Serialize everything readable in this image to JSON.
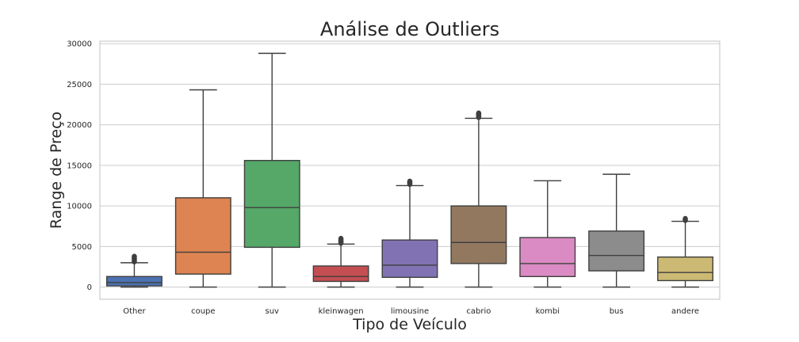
{
  "chart_data": {
    "type": "box",
    "title": "Análise de Outliers",
    "xlabel": "Tipo de Veículo",
    "ylabel": "Range de Preço",
    "ylim": [
      -1500,
      30300
    ],
    "yticks": [
      0,
      5000,
      10000,
      15000,
      20000,
      25000,
      30000
    ],
    "grid": true,
    "categories": [
      "Other",
      "coupe",
      "suv",
      "kleinwagen",
      "limousine",
      "cabrio",
      "kombi",
      "bus",
      "andere"
    ],
    "boxes": [
      {
        "category": "Other",
        "color": "#4c72b0",
        "whisker_low": 0,
        "q1": 150,
        "median": 550,
        "q3": 1300,
        "whisker_high": 3000,
        "fliers": [
          3150,
          3350,
          3550,
          3750
        ]
      },
      {
        "category": "coupe",
        "color": "#dd8452",
        "whisker_low": 0,
        "q1": 1600,
        "median": 4300,
        "q3": 11000,
        "whisker_high": 24300,
        "fliers": []
      },
      {
        "category": "suv",
        "color": "#55a868",
        "whisker_low": 0,
        "q1": 4900,
        "median": 9800,
        "q3": 15600,
        "whisker_high": 28800,
        "fliers": []
      },
      {
        "category": "kleinwagen",
        "color": "#c44e52",
        "whisker_low": 0,
        "q1": 700,
        "median": 1300,
        "q3": 2600,
        "whisker_high": 5300,
        "fliers": [
          5450,
          5600,
          5800,
          5950
        ]
      },
      {
        "category": "limousine",
        "color": "#8172b3",
        "whisker_low": 0,
        "q1": 1200,
        "median": 2700,
        "q3": 5800,
        "whisker_high": 12500,
        "fliers": [
          12700,
          12850,
          13000
        ]
      },
      {
        "category": "cabrio",
        "color": "#937860",
        "whisker_low": 0,
        "q1": 2900,
        "median": 5500,
        "q3": 10000,
        "whisker_high": 20800,
        "fliers": [
          20950,
          21100,
          21250,
          21400
        ]
      },
      {
        "category": "kombi",
        "color": "#da8bc3",
        "whisker_low": 0,
        "q1": 1300,
        "median": 2900,
        "q3": 6100,
        "whisker_high": 13100,
        "fliers": []
      },
      {
        "category": "bus",
        "color": "#8c8c8c",
        "whisker_low": 0,
        "q1": 2000,
        "median": 3900,
        "q3": 6900,
        "whisker_high": 13900,
        "fliers": []
      },
      {
        "category": "andere",
        "color": "#ccb974",
        "whisker_low": 0,
        "q1": 800,
        "median": 1800,
        "q3": 3700,
        "whisker_high": 8100,
        "fliers": [
          8250,
          8400
        ]
      }
    ]
  }
}
